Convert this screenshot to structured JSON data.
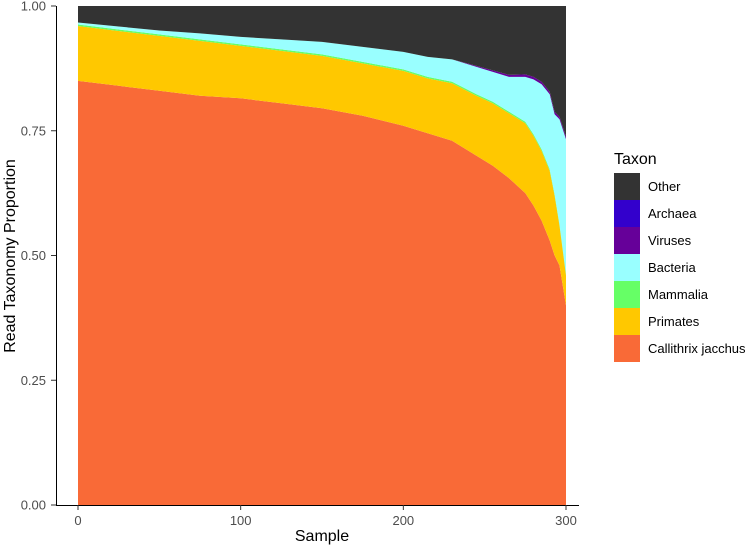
{
  "chart_data": {
    "type": "area",
    "stacked": true,
    "xlabel": "Sample",
    "ylabel": "Read Taxonomy Proportion",
    "xlim": [
      0,
      300
    ],
    "ylim": [
      0,
      1
    ],
    "x_ticks": [
      0,
      100,
      200,
      300
    ],
    "x_tick_labels": [
      "0",
      "100",
      "200",
      "300"
    ],
    "y_ticks": [
      0,
      0.25,
      0.5,
      0.75,
      1
    ],
    "y_tick_labels": [
      "0.00",
      "0.25",
      "0.50",
      "0.75",
      "1.00"
    ],
    "grid": false,
    "legend": {
      "title": "Taxon",
      "position": "right",
      "entries": [
        "Other",
        "Archaea",
        "Viruses",
        "Bacteria",
        "Mammalia",
        "Primates",
        "Callithrix jacchus"
      ]
    },
    "x": [
      0,
      25,
      50,
      75,
      100,
      125,
      150,
      175,
      200,
      215,
      230,
      245,
      255,
      265,
      275,
      280,
      285,
      290,
      293,
      296,
      300
    ],
    "series": [
      {
        "name": "Callithrix jacchus",
        "color": "#f96a37",
        "values": [
          0.85,
          0.84,
          0.83,
          0.82,
          0.815,
          0.805,
          0.795,
          0.78,
          0.76,
          0.745,
          0.73,
          0.7,
          0.68,
          0.655,
          0.625,
          0.6,
          0.57,
          0.53,
          0.5,
          0.48,
          0.4
        ]
      },
      {
        "name": "Primates",
        "color": "#ffc800",
        "values": [
          0.11,
          0.11,
          0.11,
          0.11,
          0.105,
          0.105,
          0.105,
          0.105,
          0.11,
          0.11,
          0.115,
          0.12,
          0.125,
          0.13,
          0.14,
          0.14,
          0.14,
          0.14,
          0.12,
          0.08,
          0.06
        ]
      },
      {
        "name": "Mammalia",
        "color": "#66ff66",
        "values": [
          0.003,
          0.003,
          0.003,
          0.003,
          0.003,
          0.003,
          0.003,
          0.003,
          0.003,
          0.003,
          0.003,
          0.003,
          0.003,
          0.003,
          0.003,
          0.003,
          0.003,
          0.003,
          0.003,
          0.003,
          0.003
        ]
      },
      {
        "name": "Bacteria",
        "color": "#99ffff",
        "values": [
          0.004,
          0.006,
          0.008,
          0.012,
          0.015,
          0.02,
          0.025,
          0.03,
          0.035,
          0.04,
          0.045,
          0.055,
          0.06,
          0.07,
          0.09,
          0.11,
          0.13,
          0.15,
          0.16,
          0.21,
          0.27
        ]
      },
      {
        "name": "Viruses",
        "color": "#660099",
        "values": [
          0,
          0,
          0,
          0,
          0,
          0,
          0,
          0,
          0,
          0,
          0,
          0.002,
          0.003,
          0.004,
          0.005,
          0.005,
          0.005,
          0.005,
          0.005,
          0.005,
          0.005
        ]
      },
      {
        "name": "Archaea",
        "color": "#3300cc",
        "values": [
          0,
          0,
          0,
          0,
          0,
          0,
          0,
          0,
          0,
          0,
          0,
          0,
          0,
          0,
          0,
          0,
          0,
          0,
          0,
          0,
          0
        ]
      },
      {
        "name": "Other",
        "color": "#333333",
        "values": [
          0.033,
          0.041,
          0.049,
          0.055,
          0.062,
          0.067,
          0.072,
          0.082,
          0.092,
          0.102,
          0.107,
          0.12,
          0.129,
          0.138,
          0.137,
          0.142,
          0.152,
          0.172,
          0.212,
          0.222,
          0.262
        ]
      }
    ]
  }
}
